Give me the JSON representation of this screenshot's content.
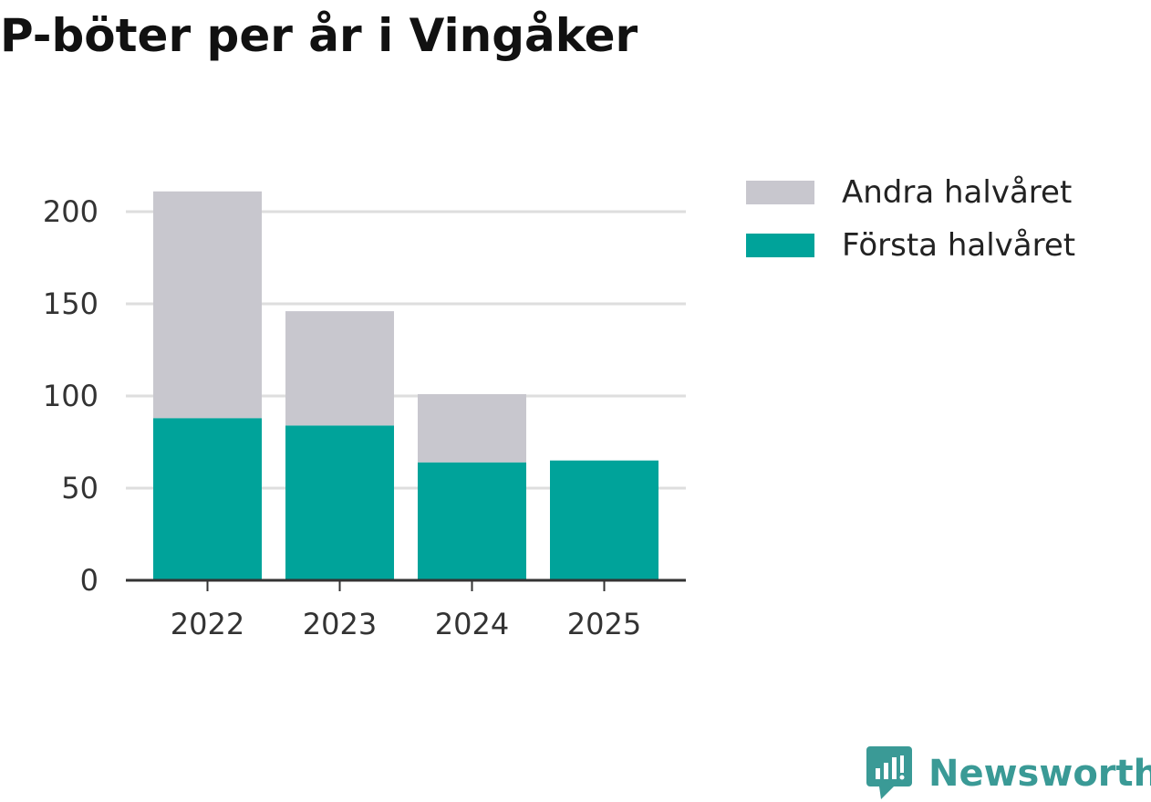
{
  "title": "P-böter per år i Vingåker",
  "chart_data": {
    "type": "bar",
    "stacked": true,
    "title": "P-böter per år i Vingåker",
    "xlabel": "",
    "ylabel": "",
    "categories": [
      "2022",
      "2023",
      "2024",
      "2025"
    ],
    "series": [
      {
        "name": "Första halvåret",
        "values": [
          88,
          84,
          64,
          65
        ],
        "color": "#00a39a"
      },
      {
        "name": "Andra halvåret",
        "values": [
          123,
          62,
          37,
          0
        ],
        "color": "#c8c7ce"
      }
    ],
    "ylim": [
      0,
      215
    ],
    "yticks": [
      0,
      50,
      100,
      150,
      200
    ],
    "grid": true,
    "legend_position": "right"
  },
  "legend": {
    "items": [
      {
        "label": "Andra halvåret",
        "color": "#c8c7ce"
      },
      {
        "label": "Första halvåret",
        "color": "#00a39a"
      }
    ]
  },
  "brand": {
    "name": "Newsworthy",
    "icon": "newsworthy-logo-icon",
    "color": "#3a9a96"
  }
}
